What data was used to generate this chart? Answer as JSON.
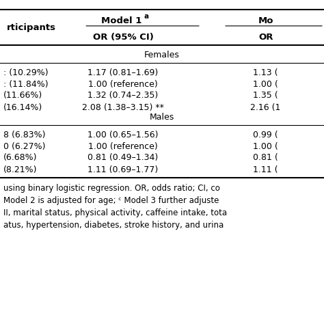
{
  "col1_header": "rticipants",
  "col2_header": "Model 1 ᵃ",
  "col2_subheader": "OR (95% CI)",
  "col3_header": "Mo",
  "col3_subheader": "OR",
  "section1": "Females",
  "section2": "Males",
  "rows": [
    {
      "col1": ": (10.29%)",
      "col2": "1.17 (0.81–1.69)",
      "col3": "1.13 ("
    },
    {
      "col1": ": (11.84%)",
      "col2": "1.00 (reference)",
      "col3": "1.00 ("
    },
    {
      "col1": "(11.66%)",
      "col2": "1.32 (0.74–2.35)",
      "col3": "1.35 ("
    },
    {
      "col1": "(16.14%)",
      "col2": "2.08 (1.38–3.15) **",
      "col3": "2.16 (1"
    },
    {
      "col1": "8 (6.83%)",
      "col2": "1.00 (0.65–1.56)",
      "col3": "0.99 ("
    },
    {
      "col1": "0 (6.27%)",
      "col2": "1.00 (reference)",
      "col3": "1.00 ("
    },
    {
      "col1": "(6.68%)",
      "col2": "0.81 (0.49–1.34)",
      "col3": "0.81 ("
    },
    {
      "col1": "(8.21%)",
      "col2": "1.11 (0.69–1.77)",
      "col3": "1.11 ("
    }
  ],
  "footnote_lines": [
    "using binary logistic regression. OR, odds ratio; CI, co",
    "Model 2 is adjusted for age; ᶜ Model 3 further adjuste",
    "II, marital status, physical activity, caffeine intake, tota",
    "atus, hypertension, diabetes, stroke history, and urina"
  ],
  "bg_color": "#ffffff",
  "text_color": "#000000",
  "line_color": "#000000"
}
